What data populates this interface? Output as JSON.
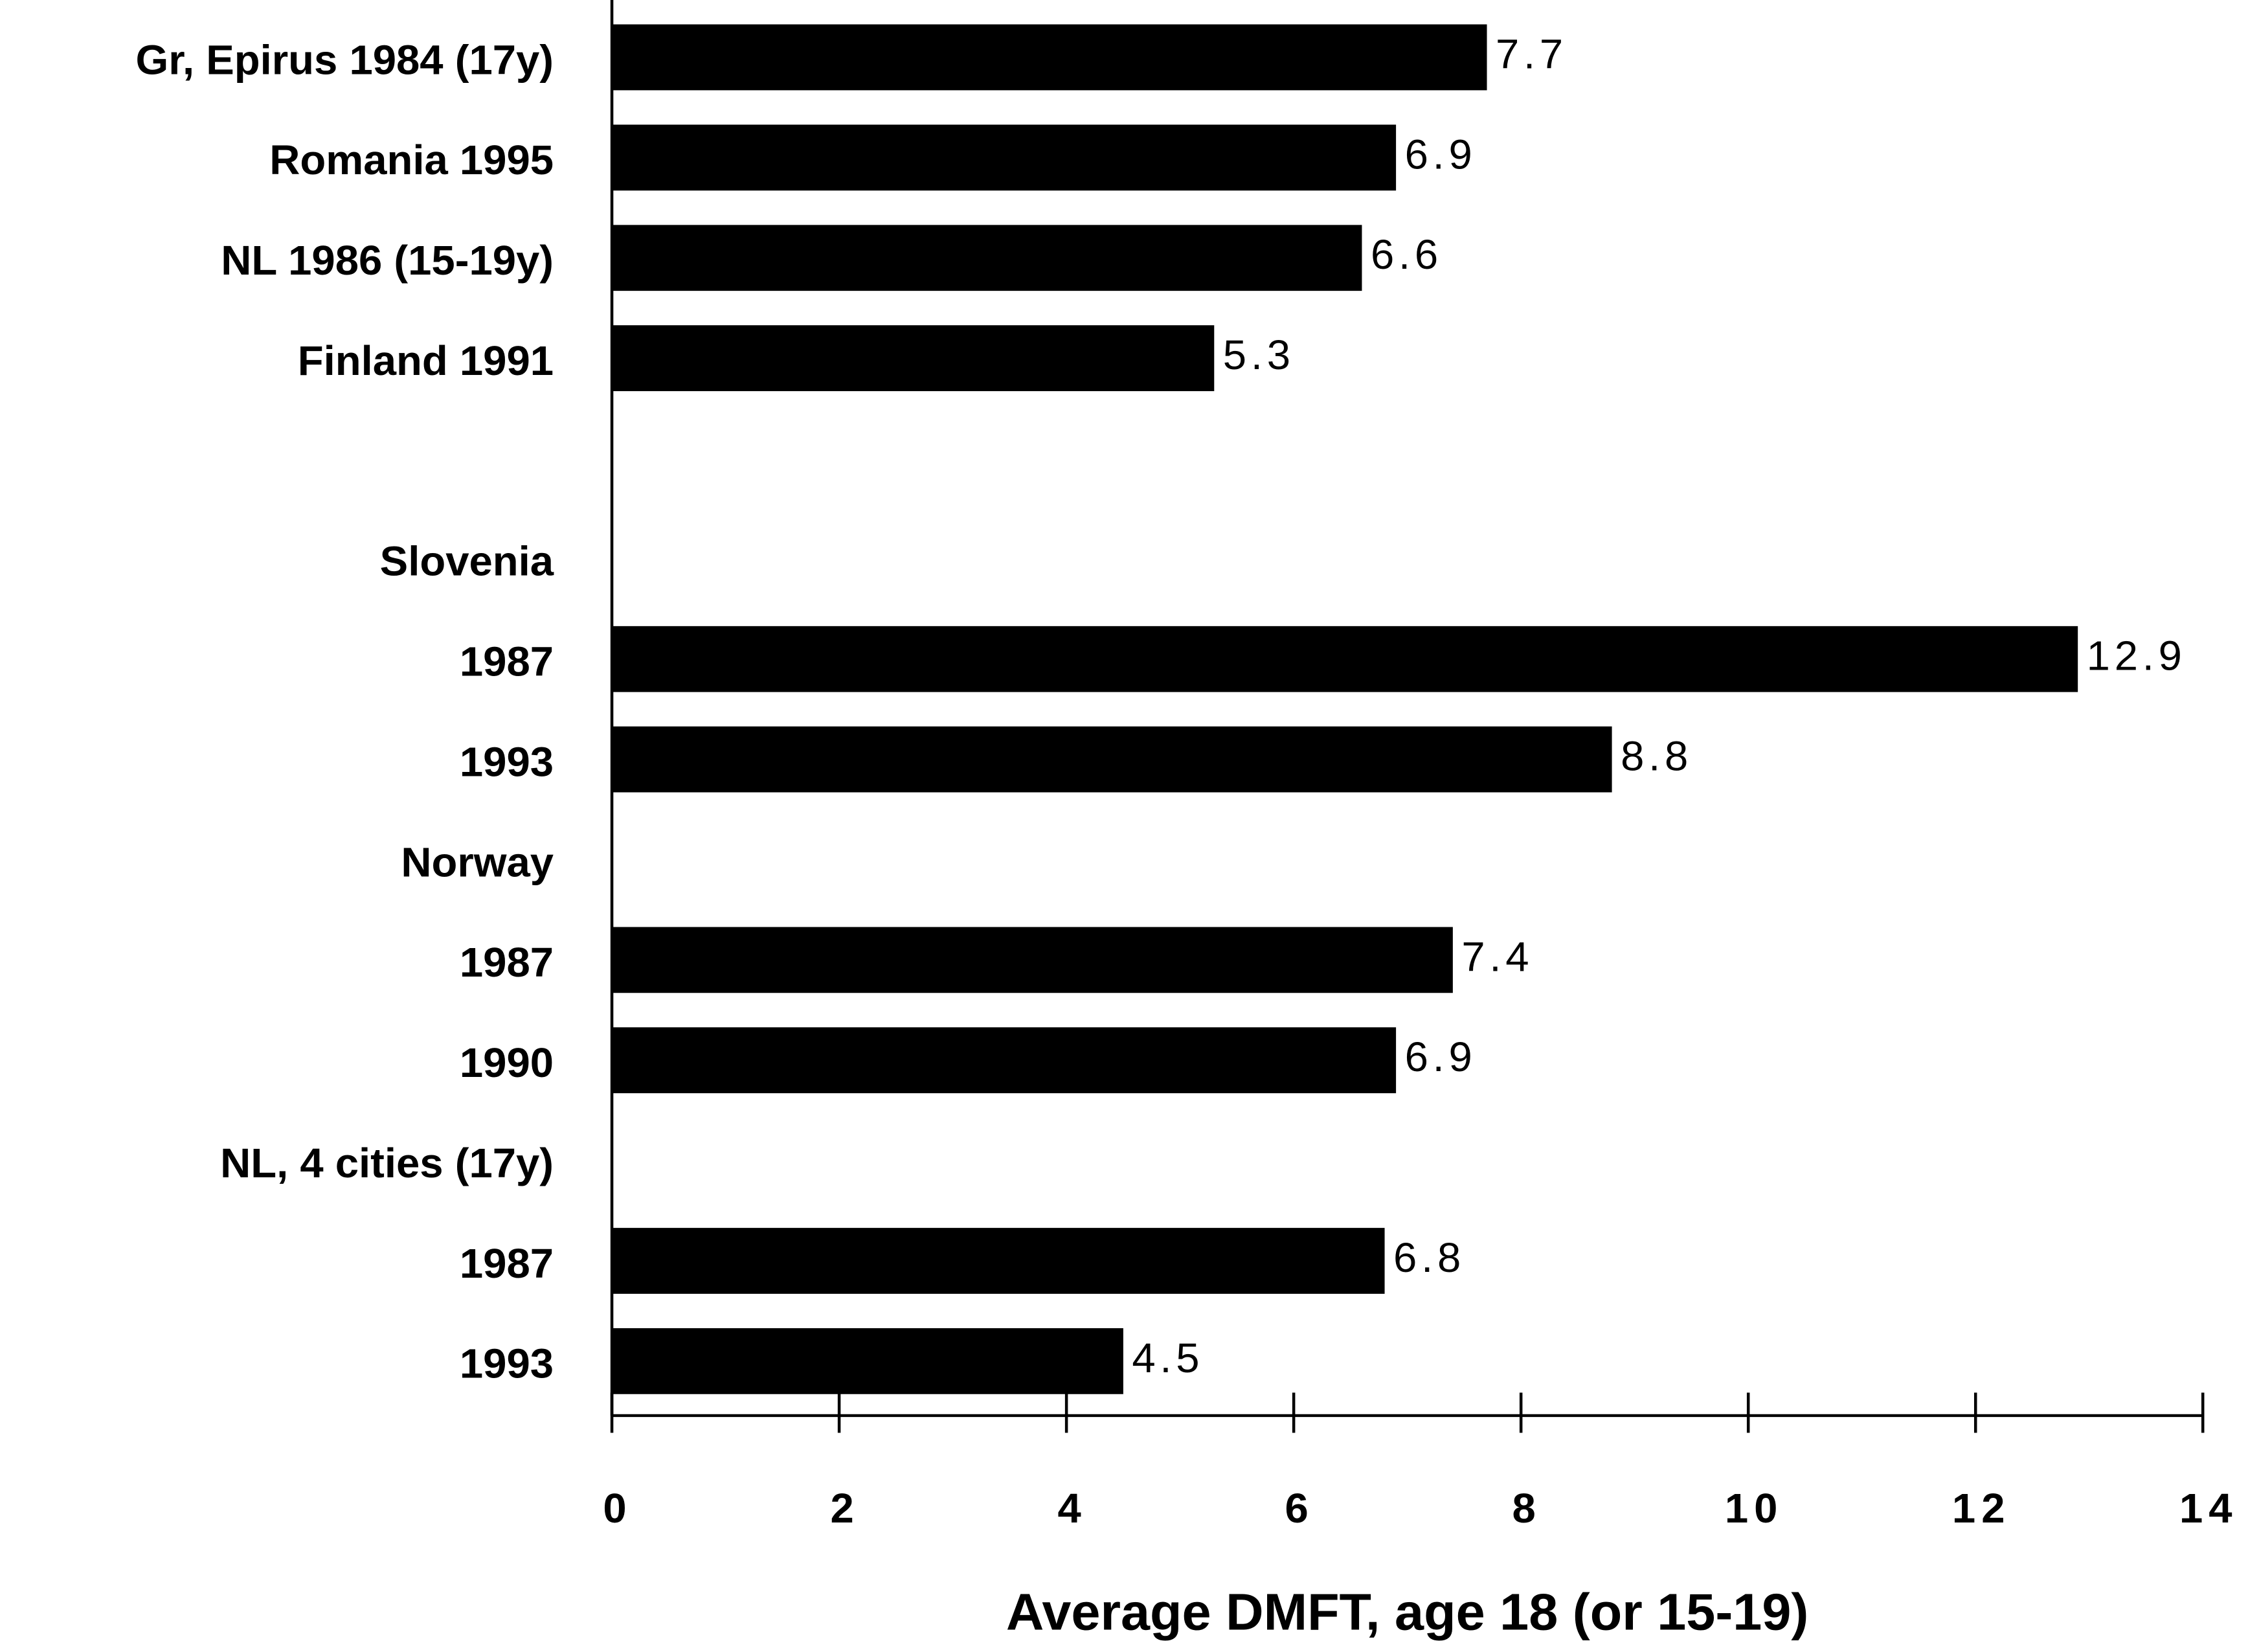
{
  "chart_data": {
    "type": "bar",
    "orientation": "horizontal",
    "categories": [
      "Gr, Epirus 1984 (17y)",
      "Romania 1995",
      "NL  1986  (15-19y)",
      "Finland 1991",
      null,
      "Slovenia",
      "1987",
      "1993",
      "Norway",
      "1987",
      "1990",
      "NL, 4 cities (17y)",
      "1987",
      "1993"
    ],
    "values": [
      7.7,
      6.9,
      6.6,
      5.3,
      null,
      null,
      12.9,
      8.8,
      null,
      7.4,
      6.9,
      null,
      6.8,
      4.5
    ],
    "color": "#000000",
    "xlabel": "Average DMFT, age 18 (or 15-19)",
    "xlim": [
      0,
      14
    ],
    "xticks": [
      0,
      2,
      4,
      6,
      8,
      10,
      12,
      14
    ],
    "grid": false
  }
}
